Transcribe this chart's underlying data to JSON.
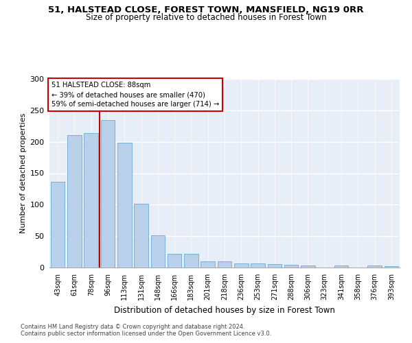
{
  "title1": "51, HALSTEAD CLOSE, FOREST TOWN, MANSFIELD, NG19 0RR",
  "title2": "Size of property relative to detached houses in Forest Town",
  "xlabel": "Distribution of detached houses by size in Forest Town",
  "ylabel": "Number of detached properties",
  "categories": [
    "43sqm",
    "61sqm",
    "78sqm",
    "96sqm",
    "113sqm",
    "131sqm",
    "148sqm",
    "166sqm",
    "183sqm",
    "201sqm",
    "218sqm",
    "236sqm",
    "253sqm",
    "271sqm",
    "288sqm",
    "306sqm",
    "323sqm",
    "341sqm",
    "358sqm",
    "376sqm",
    "393sqm"
  ],
  "values": [
    136,
    211,
    214,
    234,
    199,
    101,
    51,
    22,
    22,
    10,
    10,
    7,
    7,
    5,
    4,
    3,
    0,
    3,
    0,
    3,
    2
  ],
  "bar_color": "#b8d0ea",
  "bar_edgecolor": "#6aaad4",
  "annotation_line1": "51 HALSTEAD CLOSE: 88sqm",
  "annotation_line2": "← 39% of detached houses are smaller (470)",
  "annotation_line3": "59% of semi-detached houses are larger (714) →",
  "vline_x": 2.5,
  "vline_color": "#cc0000",
  "footnote1": "Contains HM Land Registry data © Crown copyright and database right 2024.",
  "footnote2": "Contains public sector information licensed under the Open Government Licence v3.0.",
  "ylim": [
    0,
    300
  ],
  "yticks": [
    0,
    50,
    100,
    150,
    200,
    250,
    300
  ],
  "bg_color": "#e8eef8"
}
